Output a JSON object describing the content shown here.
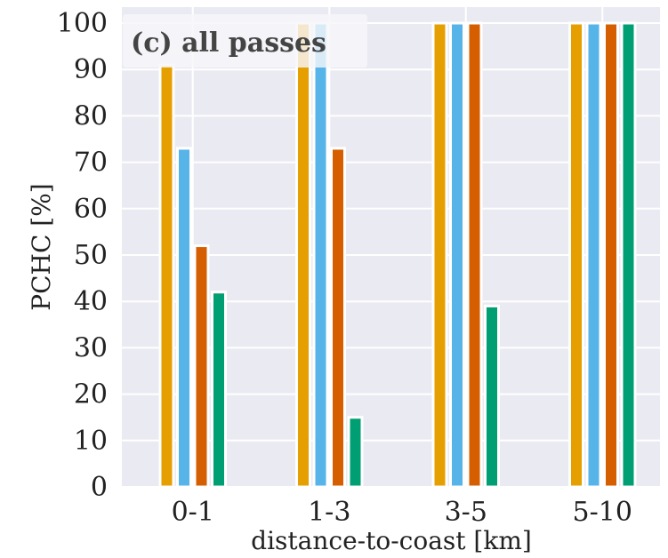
{
  "chart_data": {
    "type": "bar",
    "panel_label": "(c) all passes",
    "xlabel": "distance-to-coast [km]",
    "ylabel": "PCHC [%]",
    "categories": [
      "0-1",
      "1-3",
      "3-5",
      "5-10"
    ],
    "ylim": [
      0,
      100
    ],
    "yticks": [
      0,
      10,
      20,
      30,
      40,
      50,
      60,
      70,
      80,
      90,
      100
    ],
    "grid": true,
    "series": [
      {
        "color": "#E69F00",
        "values": [
          91,
          100,
          100,
          100
        ]
      },
      {
        "color": "#56B4E9",
        "values": [
          73,
          100,
          100,
          100
        ]
      },
      {
        "color": "#D55E00",
        "values": [
          52,
          73,
          100,
          100
        ]
      },
      {
        "color": "#009E73",
        "values": [
          42,
          15,
          39,
          100
        ]
      }
    ],
    "colors": {
      "background": "#EAEAF2",
      "grid": "#FFFFFF"
    }
  }
}
